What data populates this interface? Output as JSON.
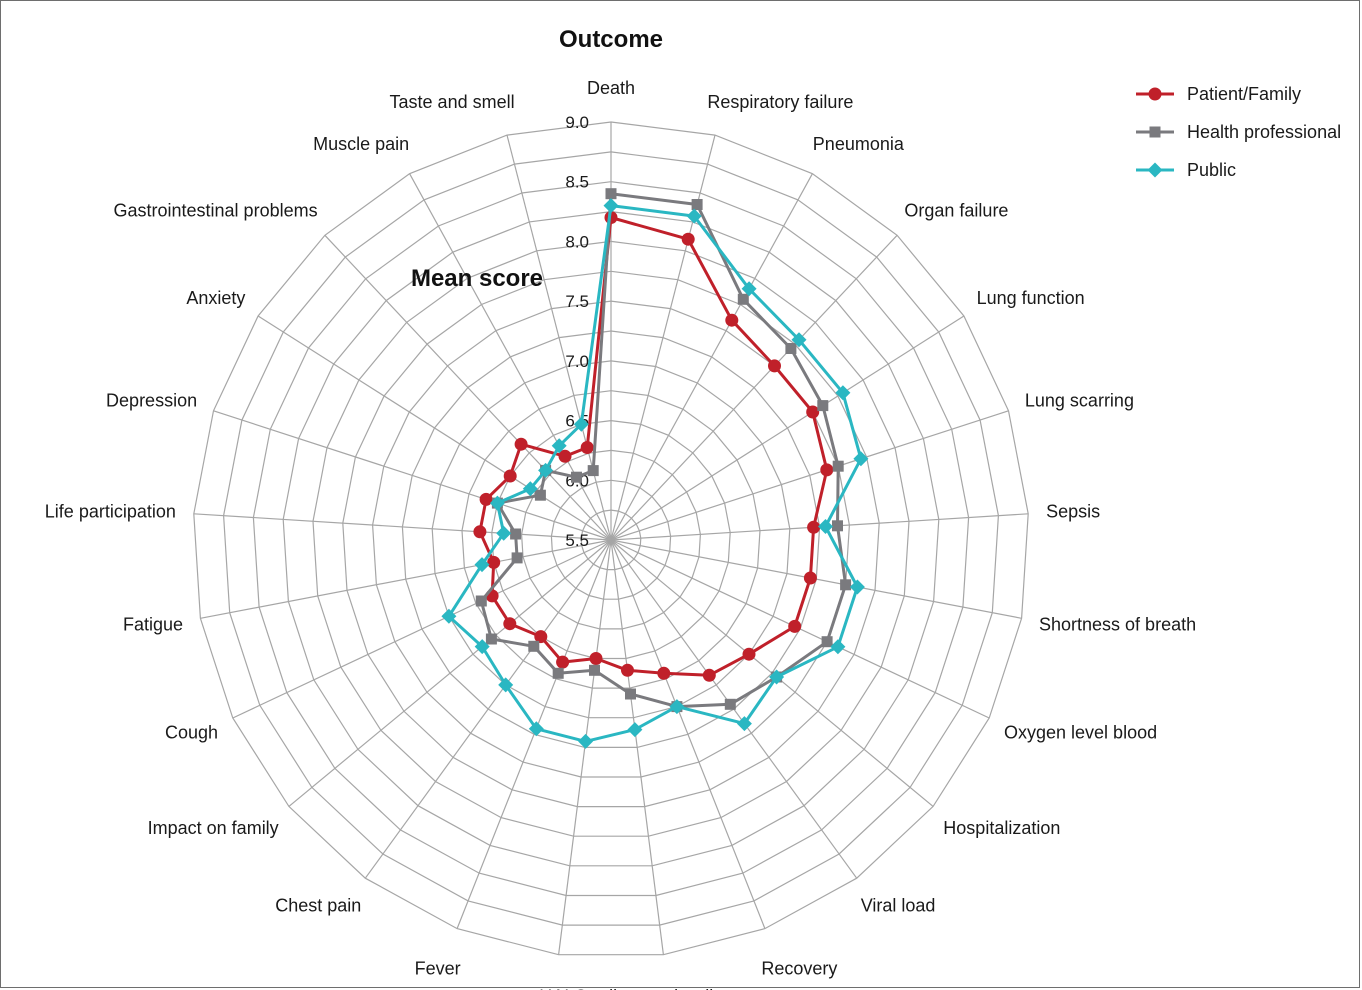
{
  "chart_data": {
    "type": "radar",
    "title": "Outcome",
    "axis_title": "Mean score",
    "rlim": [
      5.5,
      9.0
    ],
    "ticks": [
      "5.5",
      "6.0",
      "6.5",
      "7.0",
      "7.5",
      "8.0",
      "8.5",
      "9.0"
    ],
    "grid": true,
    "legend_position": "top-right",
    "categories": [
      "Death",
      "Respiratory failure",
      "Pneumonia",
      "Organ failure",
      "Lung function",
      "Lung scarring",
      "Sepsis",
      "Shortness of breath",
      "Oxygen level blood",
      "Hospitalization",
      "Viral load",
      "Recovery",
      "Cardiovascular disease",
      "HAI",
      "Fever",
      "Chest pain",
      "Impact on family",
      "Cough",
      "Fatigue",
      "Life participation",
      "Depression",
      "Anxiety",
      "Gastrointestinal problems",
      "Muscle pain",
      "Taste and smell"
    ],
    "series": [
      {
        "name": "Patient/Family",
        "color": "#c0202a",
        "marker": "circle",
        "values": [
          8.2,
          8.1,
          7.6,
          7.5,
          7.5,
          7.4,
          7.2,
          7.2,
          7.2,
          7.0,
          6.9,
          6.7,
          6.6,
          6.5,
          6.6,
          6.5,
          6.6,
          6.6,
          6.5,
          6.6,
          6.6,
          6.5,
          6.6,
          6.3,
          6.3
        ]
      },
      {
        "name": "Health professional",
        "color": "#7a7a7e",
        "marker": "square",
        "values": [
          8.4,
          8.4,
          7.8,
          7.7,
          7.6,
          7.5,
          7.4,
          7.5,
          7.5,
          7.3,
          7.2,
          7.0,
          6.8,
          6.6,
          6.7,
          6.6,
          6.8,
          6.7,
          6.3,
          6.3,
          6.5,
          6.2,
          6.3,
          6.1,
          6.1
        ]
      },
      {
        "name": "Public",
        "color": "#2ab7c2",
        "marker": "diamond",
        "values": [
          8.3,
          8.3,
          7.9,
          7.8,
          7.8,
          7.7,
          7.3,
          7.6,
          7.6,
          7.3,
          7.4,
          7.0,
          7.1,
          7.2,
          7.2,
          7.0,
          6.9,
          7.0,
          6.6,
          6.4,
          6.5,
          6.3,
          6.3,
          6.4,
          6.5
        ]
      }
    ]
  }
}
